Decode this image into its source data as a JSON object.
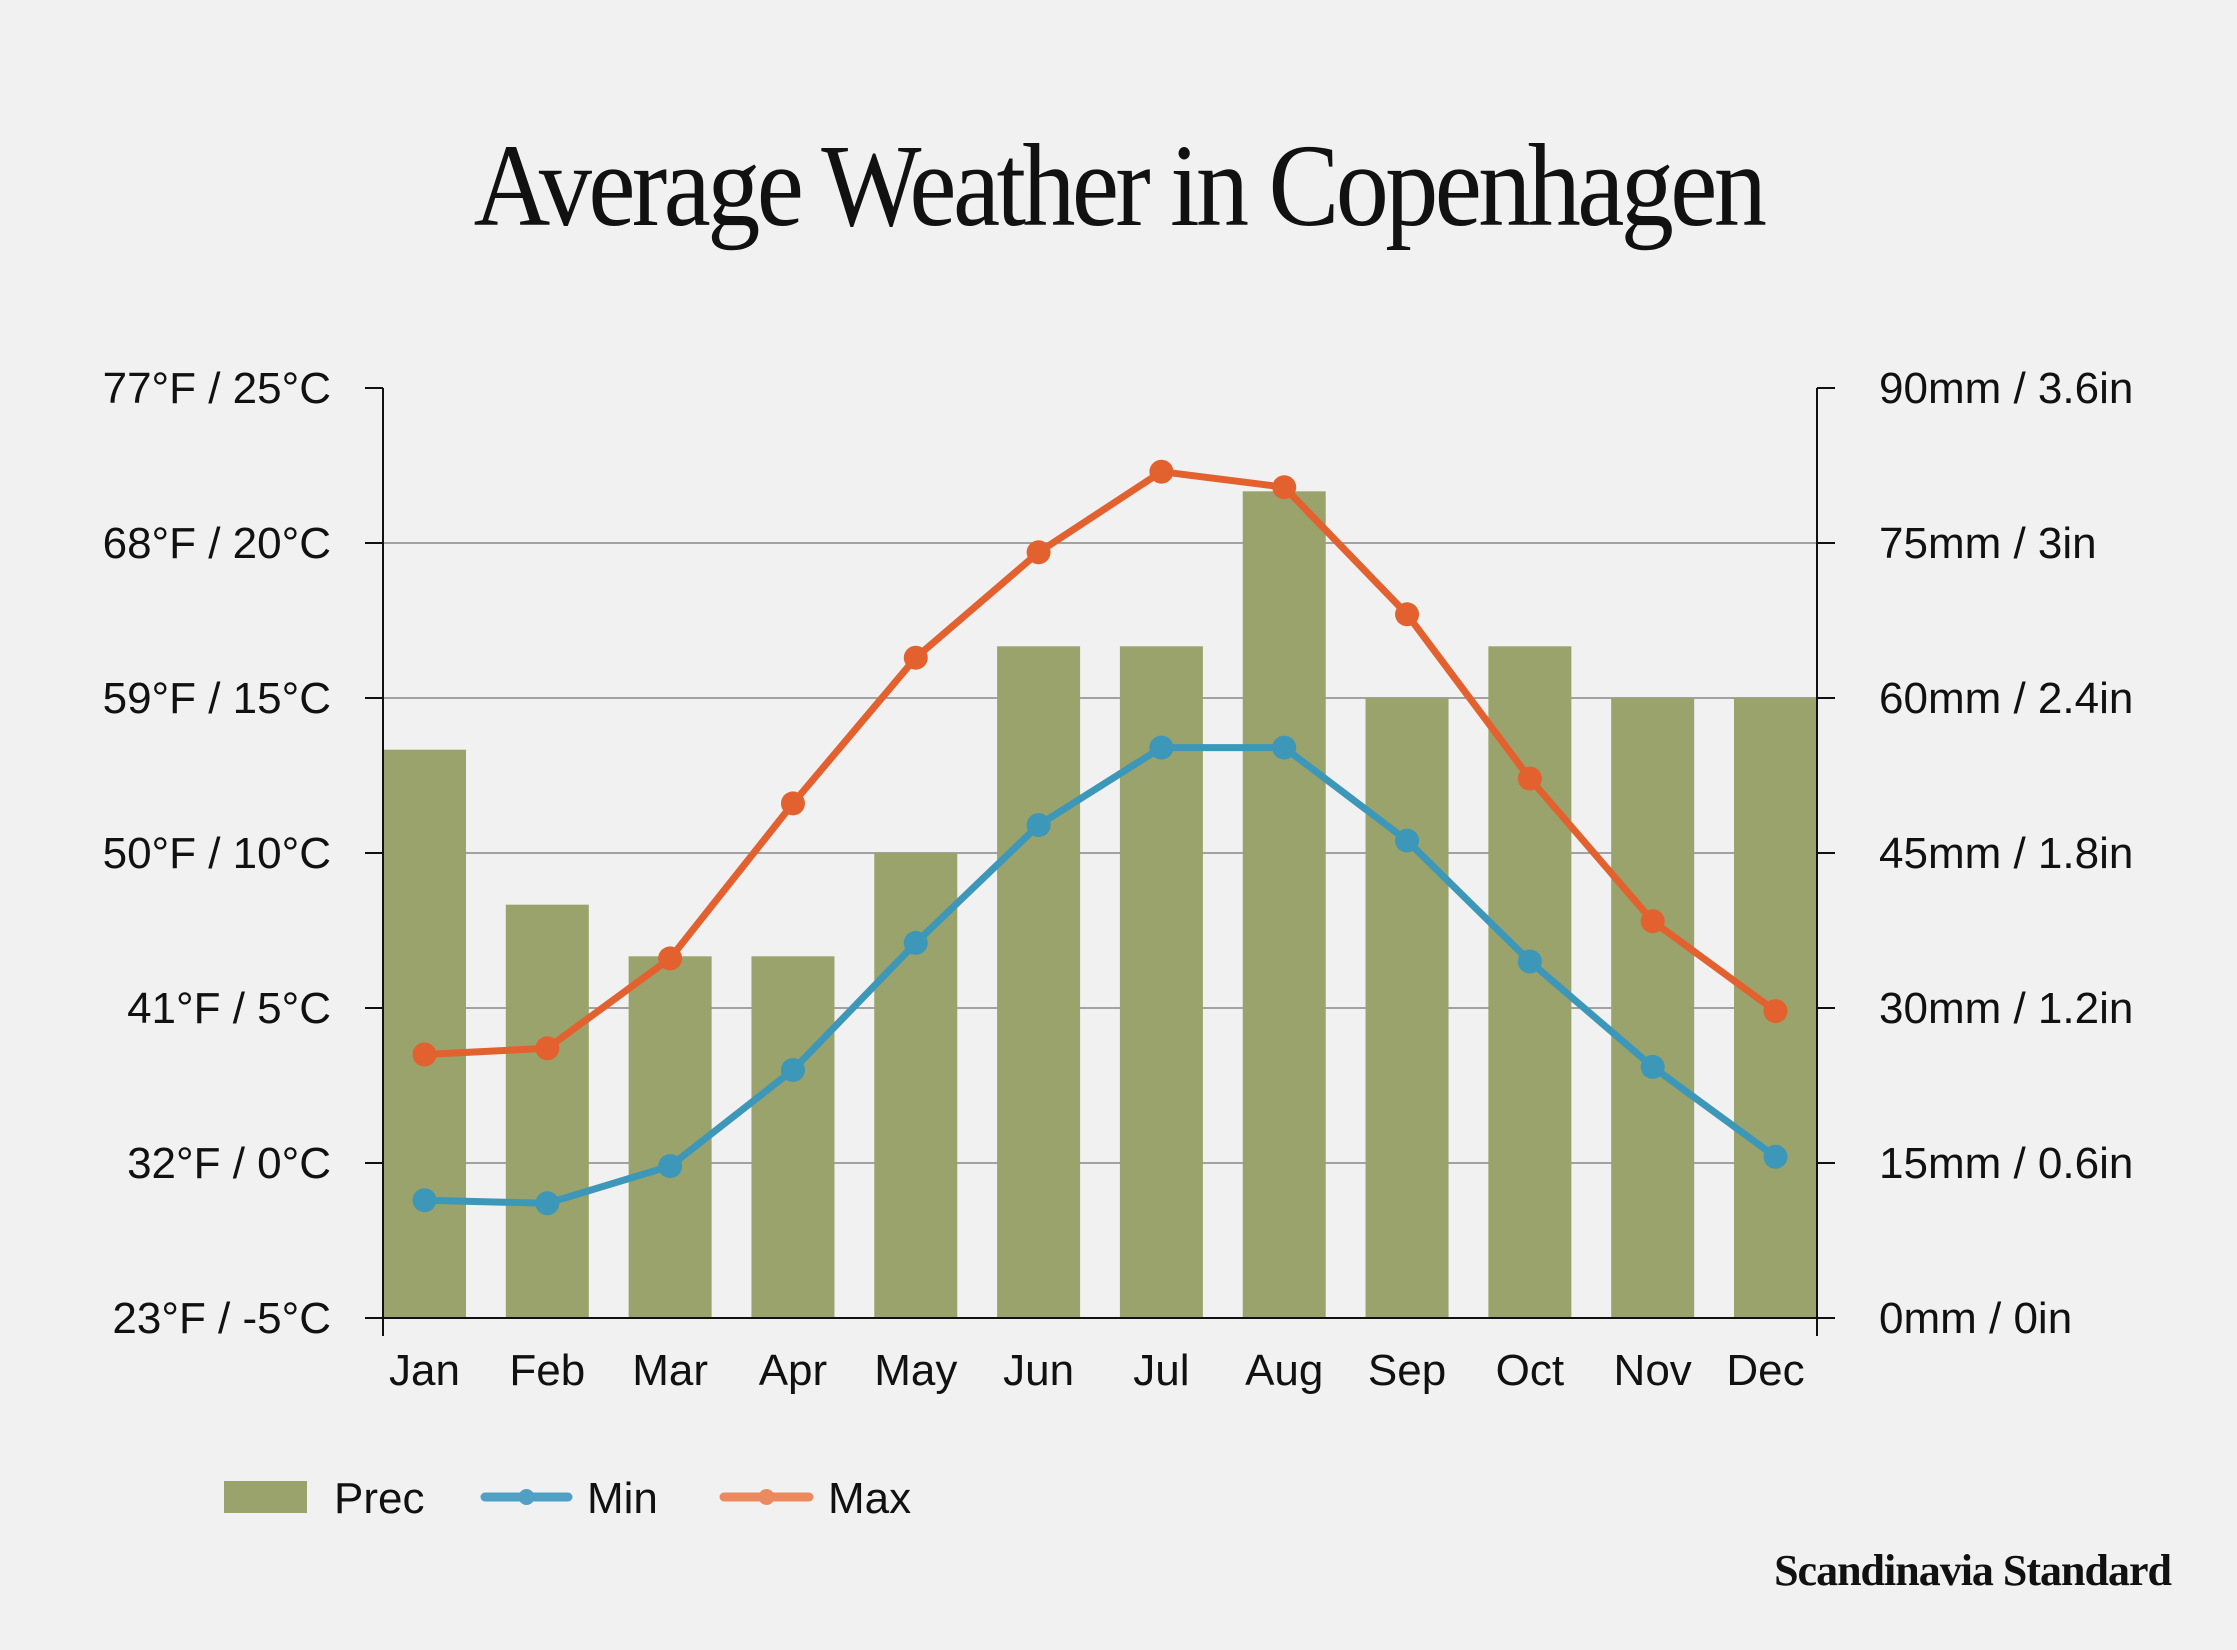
{
  "chart_data": {
    "type": "bar+line",
    "title": "Average Weather in Copenhagen",
    "categories": [
      "Jan",
      "Feb",
      "Mar",
      "Apr",
      "May",
      "Jun",
      "Jul",
      "Aug",
      "Sep",
      "Oct",
      "Nov",
      "Dec"
    ],
    "series": [
      {
        "name": "Prec",
        "type": "bar",
        "axis": "right",
        "unit": "mm",
        "color": "#9aa36b",
        "values": [
          55,
          40,
          35,
          35,
          45,
          65,
          65,
          80,
          60,
          65,
          60,
          60
        ]
      },
      {
        "name": "Min",
        "type": "line",
        "axis": "left",
        "unit": "°C",
        "color": "#3d97b8",
        "values": [
          -1.2,
          -1.3,
          -0.1,
          3.0,
          7.1,
          10.9,
          13.4,
          13.4,
          10.4,
          6.5,
          3.1,
          0.2
        ]
      },
      {
        "name": "Max",
        "type": "line",
        "axis": "left",
        "unit": "°C",
        "color": "#e2612f",
        "values": [
          3.5,
          3.7,
          6.6,
          11.6,
          16.3,
          19.7,
          22.3,
          21.8,
          17.7,
          12.4,
          7.8,
          4.9
        ]
      }
    ],
    "left_axis": {
      "range": [
        -5,
        25
      ],
      "ticks": [
        25,
        20,
        15,
        10,
        5,
        0,
        -5
      ],
      "tick_labels": [
        "77°F / 25°C",
        "68°F / 20°C",
        "59°F / 15°C",
        "50°F / 10°C",
        "41°F / 5°C",
        "32°F / 0°C",
        "23°F / -5°C"
      ]
    },
    "right_axis": {
      "range": [
        0,
        90
      ],
      "ticks": [
        90,
        75,
        60,
        45,
        30,
        15,
        0
      ],
      "tick_labels": [
        "90mm / 3.6in",
        "75mm / 3in",
        "60mm / 2.4in",
        "45mm / 1.8in",
        "30mm / 1.2in",
        "15mm / 0.6in",
        "0mm / 0in"
      ]
    },
    "grid": true,
    "legend": {
      "placement": "bottom-left",
      "entries": [
        "Prec",
        "Min",
        "Max"
      ]
    }
  },
  "brand": "Scandinavia Standard"
}
